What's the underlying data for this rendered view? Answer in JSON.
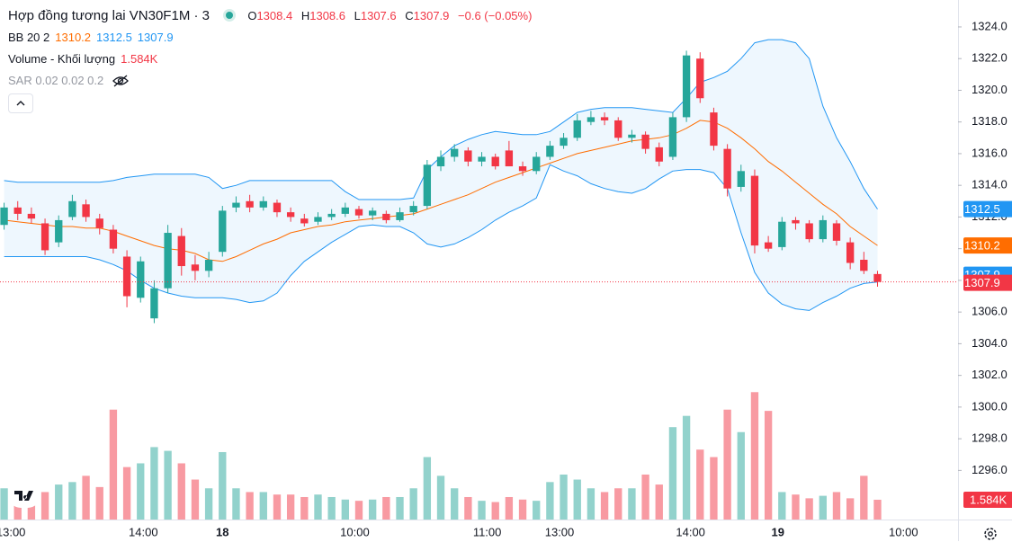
{
  "chart_data": {
    "type": "candlestick",
    "title": "Hợp đồng tương lai VN30F1M · 3",
    "change_label": "−0.6 (−0.05%)",
    "ohlc_letters": [
      "O",
      "H",
      "L",
      "C"
    ],
    "bb_label": "BB 20 2",
    "volume_label": "Volume - Khối lượng",
    "last_volume_label": "1.584K",
    "sar_label": "SAR 0.02 0.02 0.2",
    "up_color": "#26a69a",
    "down_color": "#f23645",
    "band_color": "#2196f3",
    "mid_color": "#ff6d00",
    "open": [
      1311.5,
      1312.6,
      1312.2,
      1311.6,
      1310.4,
      1312.0,
      1312.8,
      1311.9,
      1311.2,
      1309.5,
      1306.9,
      1305.6,
      1307.5,
      1310.8,
      1309.0,
      1308.6,
      1309.8,
      1312.6,
      1313.0,
      1312.6,
      1312.9,
      1312.3,
      1311.9,
      1311.7,
      1312.0,
      1312.2,
      1312.5,
      1312.1,
      1312.2,
      1311.8,
      1312.3,
      1312.7,
      1315.2,
      1315.8,
      1316.2,
      1315.5,
      1315.8,
      1316.2,
      1315.2,
      1314.9,
      1315.8,
      1316.5,
      1317.0,
      1318.0,
      1318.3,
      1318.1,
      1317.0,
      1317.2,
      1316.4,
      1315.8,
      1318.3,
      1322.0,
      1318.6,
      1316.3,
      1313.9,
      1314.6,
      1310.4,
      1310.1,
      1311.8,
      1311.6,
      1310.6,
      1311.6,
      1310.4,
      1309.3,
      1308.4
    ],
    "high": [
      1312.9,
      1313.0,
      1312.6,
      1311.9,
      1312.1,
      1313.4,
      1313.1,
      1312.2,
      1311.5,
      1309.9,
      1309.5,
      1308.0,
      1311.5,
      1311.3,
      1309.6,
      1309.8,
      1312.7,
      1313.3,
      1313.4,
      1313.3,
      1313.1,
      1312.6,
      1312.2,
      1312.3,
      1312.5,
      1312.9,
      1312.7,
      1312.6,
      1312.4,
      1312.6,
      1313.0,
      1315.6,
      1316.2,
      1316.6,
      1316.4,
      1316.1,
      1316.0,
      1316.8,
      1315.5,
      1316.1,
      1316.8,
      1317.3,
      1318.5,
      1318.7,
      1318.6,
      1318.3,
      1317.5,
      1317.4,
      1316.7,
      1318.6,
      1322.5,
      1322.4,
      1318.9,
      1316.6,
      1315.3,
      1315.0,
      1310.8,
      1312.0,
      1312.0,
      1311.8,
      1312.1,
      1311.8,
      1310.7,
      1309.8,
      1308.6
    ],
    "low": [
      1311.2,
      1311.8,
      1311.6,
      1309.6,
      1310.1,
      1311.8,
      1311.7,
      1310.9,
      1309.7,
      1306.3,
      1306.6,
      1305.3,
      1307.2,
      1308.3,
      1308.0,
      1308.2,
      1309.5,
      1312.3,
      1312.3,
      1312.4,
      1312.0,
      1311.7,
      1311.4,
      1311.5,
      1311.8,
      1312.0,
      1311.9,
      1311.8,
      1311.6,
      1311.7,
      1312.1,
      1312.5,
      1314.9,
      1315.5,
      1315.2,
      1315.2,
      1315.0,
      1315.2,
      1314.6,
      1314.7,
      1315.6,
      1316.3,
      1316.8,
      1317.8,
      1317.8,
      1316.8,
      1316.7,
      1316.0,
      1315.2,
      1315.6,
      1318.0,
      1319.2,
      1316.2,
      1313.3,
      1313.6,
      1309.7,
      1309.8,
      1309.9,
      1311.2,
      1310.4,
      1310.4,
      1310.2,
      1308.7,
      1308.4,
      1307.6
    ],
    "close": [
      1312.6,
      1312.2,
      1311.9,
      1309.9,
      1311.8,
      1313.0,
      1312.0,
      1311.3,
      1310.0,
      1307.0,
      1309.2,
      1307.5,
      1311.0,
      1308.9,
      1308.6,
      1309.3,
      1312.4,
      1312.9,
      1312.6,
      1313.0,
      1312.3,
      1312.0,
      1311.6,
      1312.0,
      1312.2,
      1312.6,
      1312.1,
      1312.4,
      1311.8,
      1312.3,
      1312.7,
      1315.3,
      1315.8,
      1316.3,
      1315.5,
      1315.8,
      1315.2,
      1315.2,
      1314.9,
      1315.8,
      1316.5,
      1317.0,
      1318.1,
      1318.3,
      1318.1,
      1317.0,
      1317.2,
      1316.3,
      1315.5,
      1318.3,
      1322.2,
      1319.5,
      1316.5,
      1313.8,
      1314.9,
      1310.2,
      1310.0,
      1311.7,
      1311.6,
      1310.6,
      1311.8,
      1310.5,
      1309.1,
      1308.6,
      1307.9
    ],
    "volume": [
      2500,
      2600,
      2200,
      2200,
      2800,
      3000,
      3500,
      2600,
      8800,
      4200,
      4500,
      5800,
      5500,
      4500,
      3200,
      2500,
      5400,
      2500,
      2200,
      2200,
      2000,
      2000,
      1800,
      2000,
      1800,
      1600,
      1500,
      1600,
      1800,
      1800,
      2500,
      5000,
      3500,
      2500,
      1800,
      1500,
      1400,
      1800,
      1600,
      1500,
      3000,
      3600,
      3200,
      2500,
      2200,
      2500,
      2500,
      3600,
      2800,
      7400,
      8300,
      5600,
      5000,
      8800,
      7000,
      10200,
      8700,
      2200,
      2000,
      1700,
      1900,
      2200,
      1700,
      3500,
      1584
    ],
    "bb_upper": [
      1314.3,
      1314.2,
      1314.2,
      1314.2,
      1314.2,
      1314.2,
      1314.2,
      1314.2,
      1314.3,
      1314.5,
      1314.6,
      1314.7,
      1314.7,
      1314.7,
      1314.7,
      1314.5,
      1313.8,
      1314,
      1314.3,
      1314.3,
      1314.3,
      1314.3,
      1314.3,
      1314.3,
      1314.3,
      1313.6,
      1313.1,
      1313.1,
      1313.1,
      1313.1,
      1313.2,
      1315,
      1315.8,
      1316.5,
      1316.9,
      1317.2,
      1317.4,
      1317.3,
      1317.2,
      1317.2,
      1317.4,
      1318,
      1318.6,
      1318.8,
      1318.9,
      1318.9,
      1318.9,
      1318.8,
      1318.7,
      1318.6,
      1319.5,
      1320.5,
      1320.8,
      1321.2,
      1322,
      1323,
      1323.2,
      1323.2,
      1323,
      1322,
      1319,
      1317,
      1315.5,
      1313.8,
      1312.5
    ],
    "bb_mid": [
      1311.8,
      1311.7,
      1311.6,
      1311.5,
      1311.4,
      1311.4,
      1311.3,
      1311.3,
      1311.1,
      1310.8,
      1310.5,
      1310.2,
      1310,
      1309.9,
      1309.7,
      1309.3,
      1309.2,
      1309.5,
      1309.9,
      1310.3,
      1310.6,
      1311,
      1311.2,
      1311.4,
      1311.5,
      1311.7,
      1311.8,
      1311.9,
      1312,
      1312.1,
      1312.2,
      1312.5,
      1312.8,
      1313.1,
      1313.4,
      1313.8,
      1314.2,
      1314.5,
      1314.8,
      1315.1,
      1315.4,
      1315.7,
      1316,
      1316.2,
      1316.4,
      1316.6,
      1316.8,
      1316.9,
      1317,
      1317.2,
      1317.6,
      1318.1,
      1318,
      1317.6,
      1317,
      1316.3,
      1315.5,
      1314.9,
      1314.2,
      1313.5,
      1312.8,
      1312.2,
      1311.4,
      1310.8,
      1310.2
    ],
    "bb_lower": [
      1309.5,
      1309.5,
      1309.5,
      1309.5,
      1309.5,
      1309.5,
      1309.5,
      1309.3,
      1309,
      1308.6,
      1308,
      1307.5,
      1307.2,
      1307,
      1306.9,
      1306.9,
      1306.9,
      1306.8,
      1306.6,
      1306.7,
      1307.2,
      1308.3,
      1309.2,
      1309.8,
      1310.4,
      1310.9,
      1311.4,
      1311.5,
      1311.4,
      1311.4,
      1311,
      1310.3,
      1310.1,
      1310.3,
      1310.7,
      1311.2,
      1311.8,
      1312.3,
      1312.7,
      1313.2,
      1315.3,
      1314.9,
      1314.6,
      1314.1,
      1313.8,
      1313.6,
      1313.5,
      1313.8,
      1314.4,
      1314.9,
      1315,
      1315,
      1314.8,
      1313.8,
      1311,
      1308.5,
      1307.2,
      1306.5,
      1306.2,
      1306.1,
      1306.6,
      1307,
      1307.5,
      1307.8,
      1307.9
    ],
    "xlim": [
      -0.3,
      69.9
    ],
    "xticks": [
      {
        "value": 0.5,
        "label": "13:00"
      },
      {
        "value": 10.2,
        "label": "14:00"
      },
      {
        "value": 16,
        "label": "18"
      },
      {
        "value": 25.7,
        "label": "10:00"
      },
      {
        "value": 35.4,
        "label": "11:00"
      },
      {
        "value": 40.7,
        "label": "13:00"
      },
      {
        "value": 50.3,
        "label": "14:00"
      },
      {
        "value": 56.7,
        "label": "19"
      },
      {
        "value": 65.9,
        "label": "10:00"
      }
    ],
    "ylim": [
      1292.9,
      1325.7
    ],
    "yticks": [
      {
        "value": 1296,
        "label": "1296.0"
      },
      {
        "value": 1298,
        "label": "1298.0"
      },
      {
        "value": 1300,
        "label": "1300.0"
      },
      {
        "value": 1302,
        "label": "1302.0"
      },
      {
        "value": 1304,
        "label": "1304.0"
      },
      {
        "value": 1306,
        "label": "1306.0"
      },
      {
        "value": 1308,
        "label": "1308.0"
      },
      {
        "value": 1310,
        "label": "1310.0"
      },
      {
        "value": 1312,
        "label": "1312.0"
      },
      {
        "value": 1314,
        "label": "1314.0"
      },
      {
        "value": 1316,
        "label": "1316.0"
      },
      {
        "value": 1318,
        "label": "1318.0"
      },
      {
        "value": 1320,
        "label": "1320.0"
      },
      {
        "value": 1322,
        "label": "1322.0"
      },
      {
        "value": 1324,
        "label": "1324.0"
      }
    ],
    "vlim": [
      0,
      41600
    ]
  }
}
